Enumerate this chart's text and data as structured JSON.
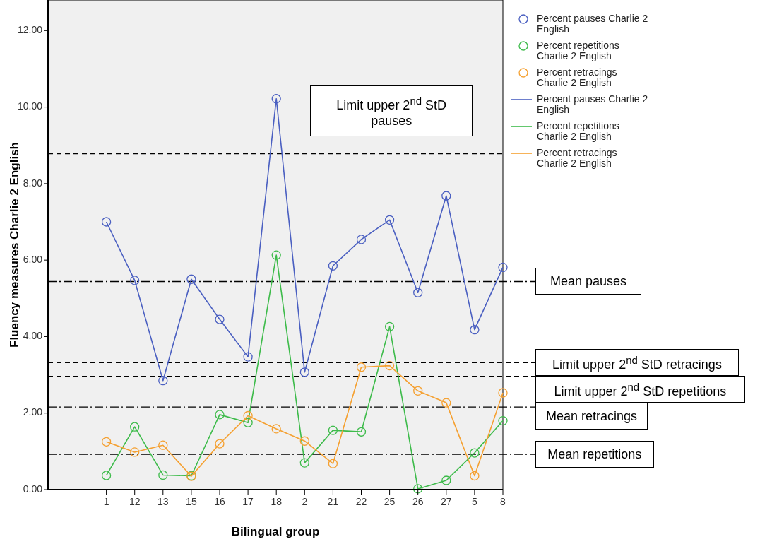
{
  "chart_data": {
    "type": "line",
    "xlabel": "Bilingual group",
    "ylabel": "Fluency measures Charlie 2 English",
    "categories": [
      "1",
      "12",
      "13",
      "15",
      "16",
      "17",
      "18",
      "2",
      "21",
      "22",
      "25",
      "26",
      "27",
      "5",
      "8"
    ],
    "series": [
      {
        "name": "Percent pauses Charlie 2 English",
        "color": "#4a5fc1",
        "values": [
          7.0,
          5.47,
          2.85,
          5.5,
          4.45,
          3.47,
          10.22,
          3.07,
          5.85,
          6.54,
          7.05,
          5.15,
          7.68,
          4.18,
          5.81
        ]
      },
      {
        "name": "Percent repetitions Charlie 2 English",
        "color": "#3dbb4a",
        "values": [
          0.37,
          1.64,
          0.38,
          0.36,
          1.96,
          1.75,
          6.13,
          0.7,
          1.55,
          1.51,
          4.26,
          0.02,
          0.24,
          0.96,
          1.8
        ]
      },
      {
        "name": "Percent retracings Charlie 2 English",
        "color": "#f5a030",
        "values": [
          1.25,
          0.98,
          1.16,
          0.35,
          1.2,
          1.93,
          1.59,
          1.27,
          0.68,
          3.2,
          3.24,
          2.58,
          2.27,
          0.36,
          2.53
        ]
      }
    ],
    "ylim": [
      0,
      12.8
    ],
    "yticks": [
      {
        "value": 0,
        "label": "0.00"
      },
      {
        "value": 2,
        "label": "2.00"
      },
      {
        "value": 4,
        "label": "4.00"
      },
      {
        "value": 6,
        "label": "6.00"
      },
      {
        "value": 8,
        "label": "8.00"
      },
      {
        "value": 10,
        "label": "10.00"
      },
      {
        "value": 12,
        "label": "12.00"
      }
    ],
    "ref_lines": [
      {
        "axis": "y",
        "value": 8.78,
        "label": "Limit upper 2$^{nd}$ StD pauses",
        "color": "#000000",
        "line_style": "dashed"
      },
      {
        "axis": "y",
        "value": 5.44,
        "label": "Mean pauses",
        "color": "#000000",
        "line_style": "dashdot"
      },
      {
        "axis": "y",
        "value": 3.32,
        "label": "Limit upper 2$^{nd}$ StD retracings",
        "color": "#000000",
        "line_style": "dashed"
      },
      {
        "axis": "y",
        "value": 2.96,
        "label": "Limit upper 2$^{nd}$ StD repetitions",
        "color": "#000000",
        "line_style": "dashed"
      },
      {
        "axis": "y",
        "value": 2.16,
        "label": "Mean retracings",
        "color": "#000000",
        "line_style": "dashdot"
      },
      {
        "axis": "y",
        "value": 0.92,
        "label": "Mean repetitions",
        "color": "#000000",
        "line_style": "dashdot"
      }
    ],
    "marker": "circle",
    "line_style": "solid",
    "grid": false,
    "legend": "right"
  }
}
